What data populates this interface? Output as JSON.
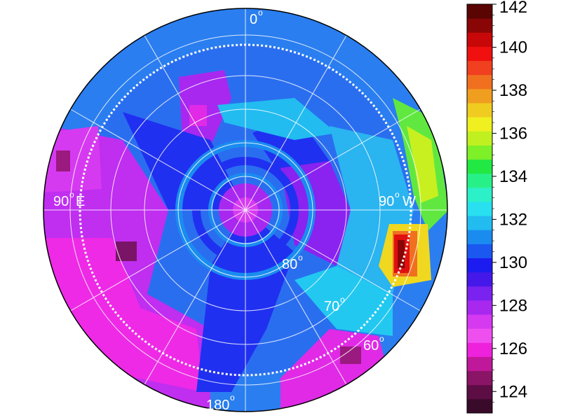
{
  "map": {
    "labels": {
      "north": "0",
      "east": "90",
      "east_dir": "E",
      "west": "90",
      "west_dir": "W",
      "south": "180",
      "lat_80": "80",
      "lat_70": "70",
      "lat_60": "60",
      "degree_symbol": "o"
    },
    "dashed_circle_latitude": 65,
    "grid": {
      "latitude_circles": [
        60,
        65,
        70,
        75,
        80,
        85
      ],
      "longitude_step_deg": 30
    }
  },
  "colorbar": {
    "min": 123,
    "max": 142,
    "tick_values": [
      124,
      126,
      128,
      130,
      132,
      134,
      136,
      138,
      140,
      142
    ],
    "tick_labels": [
      "124",
      "126",
      "128",
      "130",
      "132",
      "134",
      "136",
      "138",
      "140",
      "142"
    ],
    "colors": [
      "#3a0a2a",
      "#5c0d44",
      "#8a1466",
      "#c0189a",
      "#ee22dd",
      "#f04fef",
      "#d63af0",
      "#a828f0",
      "#7a22f0",
      "#4418e8",
      "#1c1cf0",
      "#1a58f0",
      "#1a8cf0",
      "#22bcf0",
      "#28e0f0",
      "#2cf0c8",
      "#28f088",
      "#22e844",
      "#7ef028",
      "#c0f020",
      "#f0f020",
      "#f0cc20",
      "#f09e20",
      "#f07020",
      "#f04020",
      "#f01010",
      "#c80808",
      "#8a0606",
      "#5a0404"
    ]
  }
}
